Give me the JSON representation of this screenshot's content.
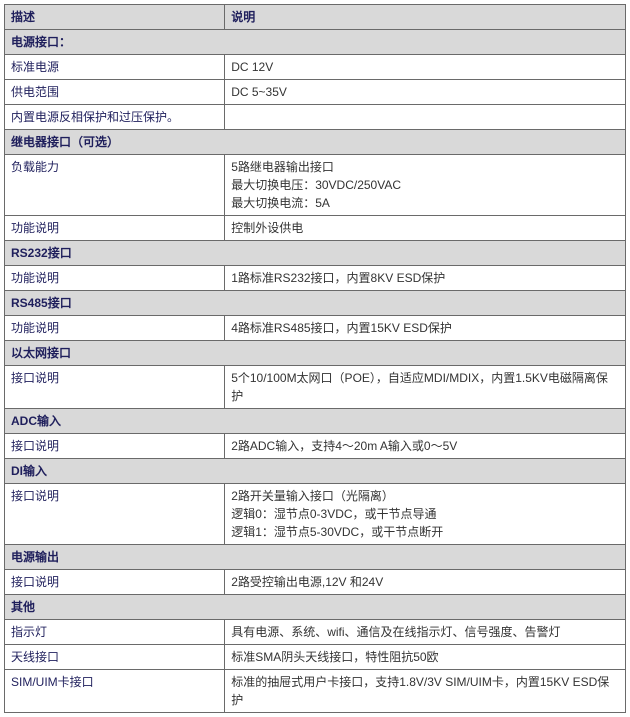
{
  "header": {
    "c1": "描述",
    "c2": "说明"
  },
  "sections": [
    {
      "title": "电源接口：",
      "rows": [
        {
          "c1": "标准电源",
          "c2": "DC 12V"
        },
        {
          "c1": "供电范围",
          "c2": "DC 5~35V"
        },
        {
          "c1": "内置电源反相保护和过压保护。",
          "c2": ""
        }
      ]
    },
    {
      "title": "继电器接口（可选）",
      "rows": [
        {
          "c1": "负载能力",
          "c2": "5路继电器输出接口\n最大切换电压：30VDC/250VAC\n最大切换电流：5A"
        },
        {
          "c1": "功能说明",
          "c2": "控制外设供电"
        }
      ]
    },
    {
      "title": "RS232接口",
      "rows": [
        {
          "c1": "功能说明",
          "c2": "1路标准RS232接口，内置8KV ESD保护"
        }
      ]
    },
    {
      "title": "RS485接口",
      "rows": [
        {
          "c1": "功能说明",
          "c2": "4路标准RS485接口，内置15KV ESD保护"
        }
      ]
    },
    {
      "title": "以太网接口",
      "rows": [
        {
          "c1": "接口说明",
          "c2": "5个10/100M太网口（POE），自适应MDI/MDIX，内置1.5KV电磁隔离保护"
        }
      ]
    },
    {
      "title": "ADC输入",
      "rows": [
        {
          "c1": "接口说明",
          "c2": "2路ADC输入，支持4～20m A输入或0～5V"
        }
      ]
    },
    {
      "title": "DI输入",
      "rows": [
        {
          "c1": "接口说明",
          "c2": "2路开关量输入接口（光隔离）\n逻辑0：湿节点0-3VDC，或干节点导通\n逻辑1：湿节点5-30VDC，或干节点断开"
        }
      ]
    },
    {
      "title": "电源输出",
      "rows": [
        {
          "c1": "接口说明",
          "c2": "2路受控输出电源,12V 和24V"
        }
      ]
    },
    {
      "title": "其他",
      "rows": [
        {
          "c1": "指示灯",
          "c2": "具有电源、系统、wifi、通信及在线指示灯、信号强度、告警灯"
        },
        {
          "c1": "天线接口",
          "c2": "标准SMA阴头天线接口，特性阻抗50欧"
        },
        {
          "c1": "SIM/UIM卡接口",
          "c2": "标准的抽屉式用户卡接口，支持1.8V/3V SIM/UIM卡，内置15KV ESD保护"
        }
      ]
    }
  ]
}
